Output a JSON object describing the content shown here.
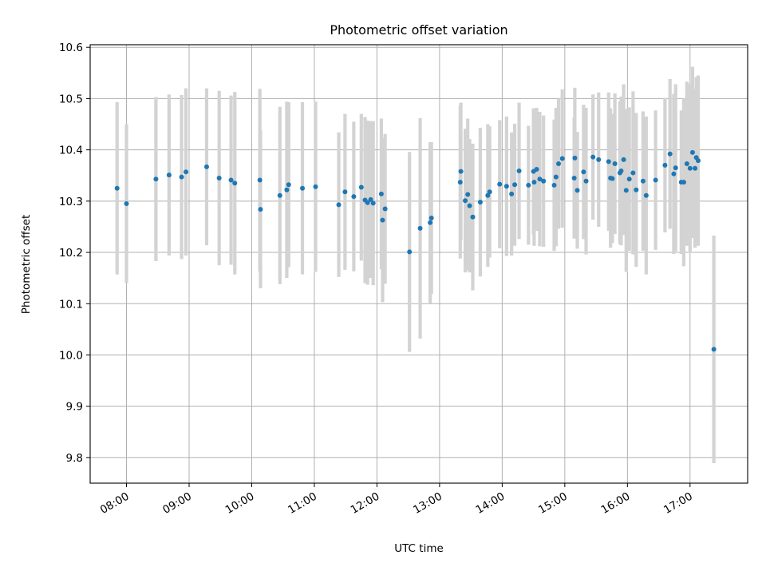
{
  "chart_data": {
    "type": "scatter",
    "title": "Photometric offset variation",
    "xlabel": "UTC time",
    "ylabel": "Photometric offset",
    "x_unit": "hours UTC",
    "xlim": [
      7.42,
      17.92
    ],
    "ylim": [
      9.75,
      10.605
    ],
    "grid": true,
    "legend": "none",
    "xticks": [
      {
        "value": 8,
        "label": "08:00"
      },
      {
        "value": 9,
        "label": "09:00"
      },
      {
        "value": 10,
        "label": "10:00"
      },
      {
        "value": 11,
        "label": "11:00"
      },
      {
        "value": 12,
        "label": "12:00"
      },
      {
        "value": 13,
        "label": "13:00"
      },
      {
        "value": 14,
        "label": "14:00"
      },
      {
        "value": 15,
        "label": "15:00"
      },
      {
        "value": 16,
        "label": "16:00"
      },
      {
        "value": 17,
        "label": "17:00"
      }
    ],
    "yticks": [
      {
        "value": 9.8,
        "label": "9.8"
      },
      {
        "value": 9.9,
        "label": "9.9"
      },
      {
        "value": 10.0,
        "label": "10.0"
      },
      {
        "value": 10.1,
        "label": "10.1"
      },
      {
        "value": 10.2,
        "label": "10.2"
      },
      {
        "value": 10.3,
        "label": "10.3"
      },
      {
        "value": 10.4,
        "label": "10.4"
      },
      {
        "value": 10.5,
        "label": "10.5"
      },
      {
        "value": 10.6,
        "label": "10.6"
      }
    ],
    "colors": {
      "points": "#1f77b4",
      "errorbars": "#d3d3d3",
      "grid": "#b0b0b0"
    },
    "series": [
      {
        "name": "offset",
        "x": [
          7.85,
          8.0,
          8.47,
          8.68,
          8.88,
          8.95,
          9.28,
          9.48,
          9.67,
          9.73,
          10.13,
          10.14,
          10.45,
          10.56,
          10.59,
          10.81,
          11.02,
          11.39,
          11.49,
          11.63,
          11.75,
          11.81,
          11.85,
          11.9,
          11.94,
          12.07,
          12.09,
          12.13,
          12.52,
          12.69,
          12.85,
          12.87,
          13.33,
          13.34,
          13.41,
          13.45,
          13.48,
          13.53,
          13.65,
          13.77,
          13.8,
          13.96,
          14.07,
          14.15,
          14.2,
          14.27,
          14.42,
          14.5,
          14.51,
          14.55,
          14.6,
          14.66,
          14.83,
          14.86,
          14.9,
          14.96,
          15.15,
          15.16,
          15.2,
          15.3,
          15.34,
          15.45,
          15.54,
          15.7,
          15.73,
          15.76,
          15.8,
          15.88,
          15.9,
          15.94,
          15.98,
          16.03,
          16.09,
          16.14,
          16.25,
          16.3,
          16.45,
          16.6,
          16.68,
          16.74,
          16.77,
          16.86,
          16.9,
          16.95,
          17.0,
          17.04,
          17.08,
          17.1,
          17.13,
          17.38
        ],
        "y": [
          10.325,
          10.295,
          10.343,
          10.351,
          10.347,
          10.357,
          10.367,
          10.345,
          10.341,
          10.335,
          10.341,
          10.284,
          10.311,
          10.322,
          10.332,
          10.325,
          10.328,
          10.293,
          10.318,
          10.309,
          10.327,
          10.302,
          10.297,
          10.303,
          10.296,
          10.314,
          10.263,
          10.285,
          10.201,
          10.247,
          10.258,
          10.267,
          10.337,
          10.358,
          10.301,
          10.313,
          10.291,
          10.269,
          10.298,
          10.311,
          10.318,
          10.333,
          10.329,
          10.314,
          10.332,
          10.359,
          10.331,
          10.358,
          10.337,
          10.362,
          10.343,
          10.339,
          10.331,
          10.347,
          10.373,
          10.383,
          10.345,
          10.384,
          10.321,
          10.357,
          10.339,
          10.386,
          10.381,
          10.377,
          10.345,
          10.344,
          10.373,
          10.355,
          10.359,
          10.381,
          10.321,
          10.343,
          10.355,
          10.322,
          10.339,
          10.311,
          10.341,
          10.37,
          10.392,
          10.353,
          10.365,
          10.337,
          10.337,
          10.373,
          10.364,
          10.395,
          10.364,
          10.385,
          10.379,
          10.011
        ],
        "yerr": [
          0.168,
          0.155,
          0.16,
          0.157,
          0.16,
          0.163,
          0.153,
          0.17,
          0.165,
          0.178,
          0.178,
          0.154,
          0.173,
          0.172,
          0.161,
          0.168,
          0.166,
          0.141,
          0.152,
          0.146,
          0.143,
          0.162,
          0.16,
          0.153,
          0.16,
          0.147,
          0.16,
          0.146,
          0.195,
          0.215,
          0.157,
          0.148,
          0.149,
          0.134,
          0.14,
          0.148,
          0.13,
          0.143,
          0.145,
          0.139,
          0.128,
          0.125,
          0.136,
          0.12,
          0.119,
          0.133,
          0.116,
          0.123,
          0.124,
          0.12,
          0.131,
          0.128,
          0.128,
          0.135,
          0.127,
          0.135,
          0.118,
          0.137,
          0.114,
          0.131,
          0.143,
          0.122,
          0.131,
          0.135,
          0.136,
          0.126,
          0.137,
          0.139,
          0.145,
          0.147,
          0.159,
          0.14,
          0.159,
          0.15,
          0.136,
          0.154,
          0.136,
          0.131,
          0.146,
          0.156,
          0.163,
          0.14,
          0.164,
          0.16,
          0.165,
          0.167,
          0.155,
          0.157,
          0.166,
          0.222
        ]
      }
    ]
  }
}
